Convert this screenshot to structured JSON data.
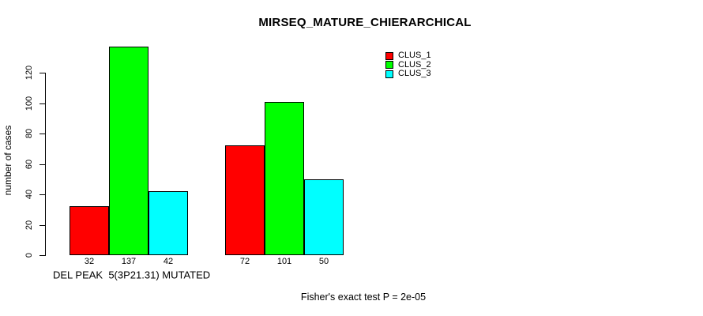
{
  "chart_data": {
    "type": "bar",
    "title": "MIRSEQ_MATURE_CHIERARCHICAL",
    "ylabel": "number of cases",
    "xlabel": "DEL PEAK  5(3P21.31) MUTATED",
    "annotation": "Fisher's exact test P = 2e-05",
    "groups": 2,
    "series": [
      {
        "name": "CLUS_1",
        "color": "#FF0000",
        "values": [
          32,
          72
        ]
      },
      {
        "name": "CLUS_2",
        "color": "#00FF00",
        "values": [
          137,
          101
        ]
      },
      {
        "name": "CLUS_3",
        "color": "#00FFFF",
        "values": [
          42,
          50
        ]
      }
    ],
    "bar_value_labels": [
      [
        32,
        137,
        42
      ],
      [
        72,
        101,
        50
      ]
    ],
    "ylim": [
      0,
      120
    ],
    "yticks": [
      0,
      20,
      40,
      60,
      80,
      100,
      120
    ],
    "legend": {
      "position": "top-right",
      "entries": [
        "CLUS_1",
        "CLUS_2",
        "CLUS_3"
      ]
    },
    "grid": false,
    "bar_border_color": "#000000",
    "background": "#FFFFFF",
    "text_color": "#000000"
  }
}
